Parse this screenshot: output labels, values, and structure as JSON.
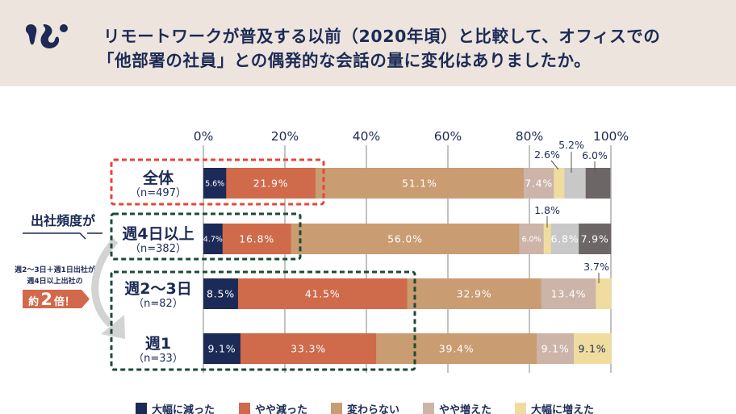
{
  "header": {
    "logo_icon": "squirrel-logo-icon",
    "title_lines": [
      "リモートワークが普及する以前（2020年頃）と比較して、オフィスでの",
      "「他部署の社員」との偶発的な会話の量に変化はありましたか。"
    ]
  },
  "annotation": {
    "frequency_label": "出社頻度が",
    "note_lines": [
      "週2～3日＋週1日出社が",
      "週4日以上出社の"
    ],
    "badge": {
      "prefix": "約",
      "number": "2",
      "suffix": "倍！"
    },
    "arrow_icon": "curved-arrow-down-icon"
  },
  "theme": {
    "header_bg": "#ede4dd",
    "text_color": "#1c2a55",
    "badge_color": "#d2694a",
    "arrow_color": "#d3d3d3",
    "highlight_overall_color": "#e8443a",
    "highlight_frequency_color": "#1e4a35"
  },
  "chart_data": {
    "type": "bar",
    "orientation": "horizontal",
    "stacked": true,
    "title": "リモートワークが普及する以前（2020年頃）と比較して、オフィスでの「他部署の社員」との偶発的な会話の量に変化はありましたか。",
    "xlabel": "",
    "ylabel": "",
    "xlim": [
      0,
      100
    ],
    "x_ticks": [
      0,
      20,
      40,
      60,
      80,
      100
    ],
    "x_tick_labels": [
      "0%",
      "20%",
      "40%",
      "60%",
      "80%",
      "100%"
    ],
    "grid": true,
    "legend_position": "bottom",
    "categories": [
      "全体",
      "週4日以上",
      "週2～3日",
      "週1"
    ],
    "category_notes": [
      "（n=497）",
      "（n=382）",
      "（n=82）",
      "（n=33）"
    ],
    "series": [
      {
        "name": "大幅に減った",
        "color": "#1b2a56",
        "values": [
          5.6,
          4.7,
          8.5,
          9.1
        ],
        "labels": [
          "5.6%",
          "4.7%",
          "8.5%",
          "9.1%"
        ]
      },
      {
        "name": "やや減った",
        "color": "#cf6a4b",
        "values": [
          21.9,
          16.8,
          41.5,
          33.3
        ],
        "labels": [
          "21.9%",
          "16.8%",
          "41.5%",
          "33.3%"
        ]
      },
      {
        "name": "変わらない",
        "color": "#c99c72",
        "values": [
          51.1,
          56.0,
          32.9,
          39.4
        ],
        "labels": [
          "51.1%",
          "56.0%",
          "32.9%",
          "39.4%"
        ]
      },
      {
        "name": "やや増えた",
        "color": "#cdb4a8",
        "values": [
          7.4,
          6.0,
          13.4,
          9.1
        ],
        "labels": [
          "7.4%",
          "6.0%",
          "13.4%",
          "9.1%"
        ]
      },
      {
        "name": "大幅に増えた",
        "color": "#f0dc9e",
        "values": [
          2.6,
          1.8,
          3.7,
          9.1
        ],
        "labels": [
          "2.6%",
          "1.8%",
          "3.7%",
          "9.1%"
        ]
      },
      {
        "name": "",
        "color": "#c8c8c8",
        "values": [
          5.2,
          6.8,
          0,
          0
        ],
        "labels": [
          "5.2%",
          "6.8%",
          null,
          null
        ]
      },
      {
        "name": "",
        "color": "#6d6666",
        "values": [
          6.0,
          7.9,
          0,
          0
        ],
        "labels": [
          "6.0%",
          "7.9%",
          null,
          null
        ]
      }
    ],
    "highlights": [
      {
        "target": "全体"
      },
      {
        "target": "週4日以上"
      },
      {
        "target": "週2～3日 + 週1"
      }
    ]
  }
}
